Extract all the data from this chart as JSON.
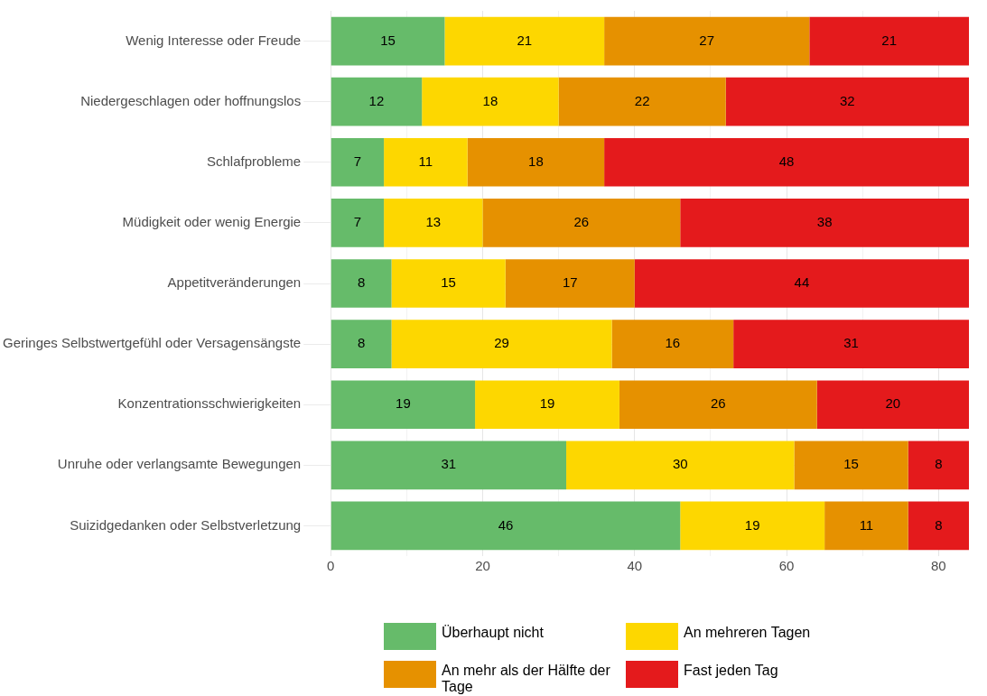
{
  "chart_data": {
    "type": "bar",
    "orientation": "horizontal",
    "stacked": true,
    "data_labels": true,
    "grid": true,
    "legend": "bottom",
    "categories": [
      "Wenig Interesse oder Freude",
      "Niedergeschlagen oder hoffnungslos",
      "Schlafprobleme",
      "Müdigkeit oder wenig Energie",
      "Appetitveränderungen",
      "Geringes Selbstwertgefühl oder Versagensängste",
      "Konzentrationsschwierigkeiten",
      "Unruhe oder verlangsamte Bewegungen",
      "Suizidgedanken oder Selbstverletzung"
    ],
    "series": [
      {
        "name": "Überhaupt nicht",
        "color": "#66bb6a",
        "values": [
          15,
          12,
          7,
          7,
          8,
          8,
          19,
          31,
          46
        ]
      },
      {
        "name": "An mehreren Tagen",
        "color": "#fdd700",
        "values": [
          21,
          18,
          11,
          13,
          15,
          29,
          19,
          30,
          19
        ]
      },
      {
        "name": "An mehr als der Hälfte der Tage",
        "color": "#e69100",
        "values": [
          27,
          22,
          18,
          26,
          17,
          16,
          26,
          15,
          11
        ]
      },
      {
        "name": "Fast jeden Tag",
        "color": "#e41a1c",
        "values": [
          21,
          32,
          48,
          38,
          44,
          31,
          20,
          8,
          8
        ]
      }
    ],
    "xlim": [
      0,
      84
    ],
    "xticks": [
      0,
      {
        "value": 10,
        "label": null
      },
      20,
      {
        "value": 30,
        "label": null
      },
      40,
      {
        "value": 50,
        "label": null
      },
      60,
      {
        "value": 70,
        "label": null
      },
      80
    ]
  }
}
